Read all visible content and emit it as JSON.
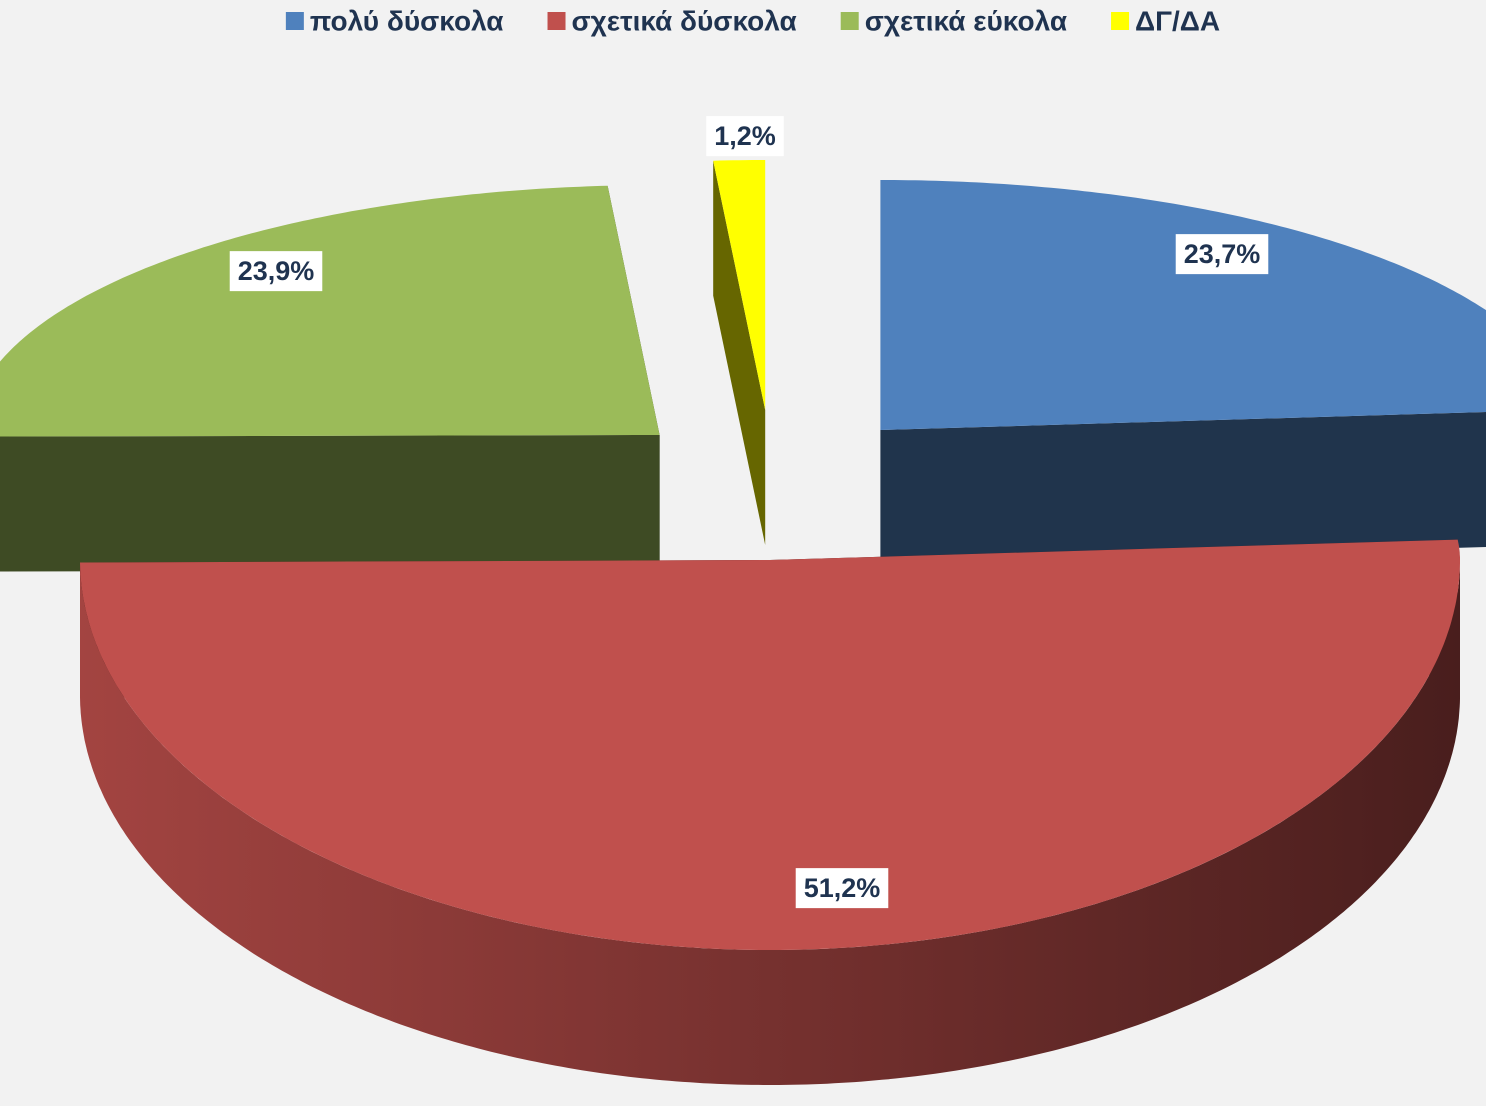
{
  "chart_data": {
    "type": "pie",
    "categories": [
      "πολύ δύσκολα",
      "σχετικά δύσκολα",
      "σχετικά εύκολα",
      "ΔΓ/ΔΑ"
    ],
    "values": [
      23.7,
      51.2,
      23.9,
      1.2
    ],
    "value_labels": [
      "23,7%",
      "51,2%",
      "23,9%",
      "1,2%"
    ],
    "colors": [
      "#4f81bd",
      "#c0504d",
      "#9bbb59",
      "#ffff00"
    ],
    "legend": "top"
  }
}
